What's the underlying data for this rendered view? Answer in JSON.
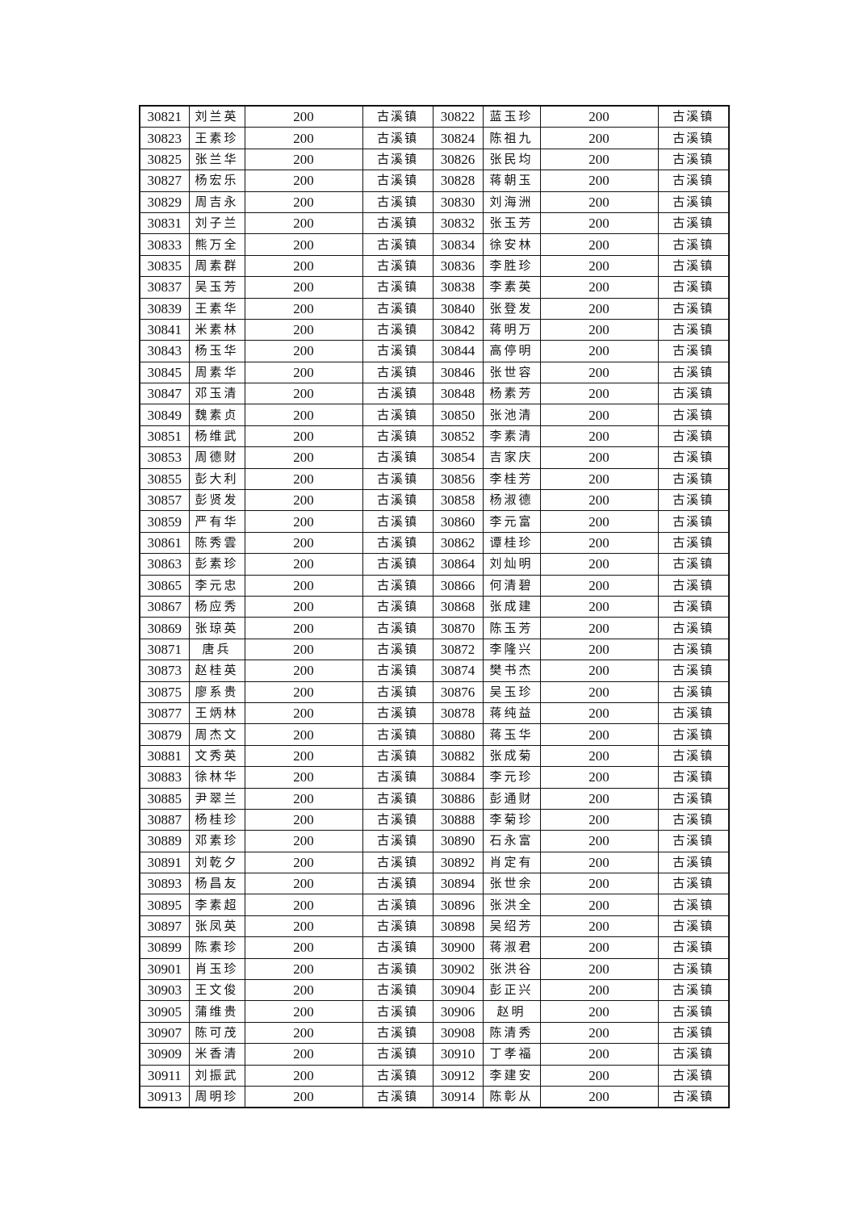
{
  "table": {
    "rows": [
      [
        "30821",
        "刘兰英",
        "200",
        "古溪镇",
        "30822",
        "蓝玉珍",
        "200",
        "古溪镇"
      ],
      [
        "30823",
        "王素珍",
        "200",
        "古溪镇",
        "30824",
        "陈祖九",
        "200",
        "古溪镇"
      ],
      [
        "30825",
        "张兰华",
        "200",
        "古溪镇",
        "30826",
        "张民均",
        "200",
        "古溪镇"
      ],
      [
        "30827",
        "杨宏乐",
        "200",
        "古溪镇",
        "30828",
        "蒋朝玉",
        "200",
        "古溪镇"
      ],
      [
        "30829",
        "周吉永",
        "200",
        "古溪镇",
        "30830",
        "刘海洲",
        "200",
        "古溪镇"
      ],
      [
        "30831",
        "刘子兰",
        "200",
        "古溪镇",
        "30832",
        "张玉芳",
        "200",
        "古溪镇"
      ],
      [
        "30833",
        "熊万全",
        "200",
        "古溪镇",
        "30834",
        "徐安林",
        "200",
        "古溪镇"
      ],
      [
        "30835",
        "周素群",
        "200",
        "古溪镇",
        "30836",
        "李胜珍",
        "200",
        "古溪镇"
      ],
      [
        "30837",
        "吴玉芳",
        "200",
        "古溪镇",
        "30838",
        "李素英",
        "200",
        "古溪镇"
      ],
      [
        "30839",
        "王素华",
        "200",
        "古溪镇",
        "30840",
        "张登发",
        "200",
        "古溪镇"
      ],
      [
        "30841",
        "米素林",
        "200",
        "古溪镇",
        "30842",
        "蒋明万",
        "200",
        "古溪镇"
      ],
      [
        "30843",
        "杨玉华",
        "200",
        "古溪镇",
        "30844",
        "高停明",
        "200",
        "古溪镇"
      ],
      [
        "30845",
        "周素华",
        "200",
        "古溪镇",
        "30846",
        "张世容",
        "200",
        "古溪镇"
      ],
      [
        "30847",
        "邓玉清",
        "200",
        "古溪镇",
        "30848",
        "杨素芳",
        "200",
        "古溪镇"
      ],
      [
        "30849",
        "魏素贞",
        "200",
        "古溪镇",
        "30850",
        "张池清",
        "200",
        "古溪镇"
      ],
      [
        "30851",
        "杨维武",
        "200",
        "古溪镇",
        "30852",
        "李素清",
        "200",
        "古溪镇"
      ],
      [
        "30853",
        "周德财",
        "200",
        "古溪镇",
        "30854",
        "吉家庆",
        "200",
        "古溪镇"
      ],
      [
        "30855",
        "彭大利",
        "200",
        "古溪镇",
        "30856",
        "李桂芳",
        "200",
        "古溪镇"
      ],
      [
        "30857",
        "彭贤发",
        "200",
        "古溪镇",
        "30858",
        "杨淑德",
        "200",
        "古溪镇"
      ],
      [
        "30859",
        "严有华",
        "200",
        "古溪镇",
        "30860",
        "李元富",
        "200",
        "古溪镇"
      ],
      [
        "30861",
        "陈秀雲",
        "200",
        "古溪镇",
        "30862",
        "谭桂珍",
        "200",
        "古溪镇"
      ],
      [
        "30863",
        "彭素珍",
        "200",
        "古溪镇",
        "30864",
        "刘灿明",
        "200",
        "古溪镇"
      ],
      [
        "30865",
        "李元忠",
        "200",
        "古溪镇",
        "30866",
        "何清碧",
        "200",
        "古溪镇"
      ],
      [
        "30867",
        "杨应秀",
        "200",
        "古溪镇",
        "30868",
        "张成建",
        "200",
        "古溪镇"
      ],
      [
        "30869",
        "张琼英",
        "200",
        "古溪镇",
        "30870",
        "陈玉芳",
        "200",
        "古溪镇"
      ],
      [
        "30871",
        "唐兵",
        "200",
        "古溪镇",
        "30872",
        "李隆兴",
        "200",
        "古溪镇"
      ],
      [
        "30873",
        "赵桂英",
        "200",
        "古溪镇",
        "30874",
        "樊书杰",
        "200",
        "古溪镇"
      ],
      [
        "30875",
        "廖系贵",
        "200",
        "古溪镇",
        "30876",
        "吴玉珍",
        "200",
        "古溪镇"
      ],
      [
        "30877",
        "王炳林",
        "200",
        "古溪镇",
        "30878",
        "蒋纯益",
        "200",
        "古溪镇"
      ],
      [
        "30879",
        "周杰文",
        "200",
        "古溪镇",
        "30880",
        "蒋玉华",
        "200",
        "古溪镇"
      ],
      [
        "30881",
        "文秀英",
        "200",
        "古溪镇",
        "30882",
        "张成菊",
        "200",
        "古溪镇"
      ],
      [
        "30883",
        "徐林华",
        "200",
        "古溪镇",
        "30884",
        "李元珍",
        "200",
        "古溪镇"
      ],
      [
        "30885",
        "尹翠兰",
        "200",
        "古溪镇",
        "30886",
        "彭通财",
        "200",
        "古溪镇"
      ],
      [
        "30887",
        "杨桂珍",
        "200",
        "古溪镇",
        "30888",
        "李菊珍",
        "200",
        "古溪镇"
      ],
      [
        "30889",
        "邓素珍",
        "200",
        "古溪镇",
        "30890",
        "石永富",
        "200",
        "古溪镇"
      ],
      [
        "30891",
        "刘乾夕",
        "200",
        "古溪镇",
        "30892",
        "肖定有",
        "200",
        "古溪镇"
      ],
      [
        "30893",
        "杨昌友",
        "200",
        "古溪镇",
        "30894",
        "张世余",
        "200",
        "古溪镇"
      ],
      [
        "30895",
        "李素超",
        "200",
        "古溪镇",
        "30896",
        "张洪全",
        "200",
        "古溪镇"
      ],
      [
        "30897",
        "张凤英",
        "200",
        "古溪镇",
        "30898",
        "吴绍芳",
        "200",
        "古溪镇"
      ],
      [
        "30899",
        "陈素珍",
        "200",
        "古溪镇",
        "30900",
        "蒋淑君",
        "200",
        "古溪镇"
      ],
      [
        "30901",
        "肖玉珍",
        "200",
        "古溪镇",
        "30902",
        "张洪谷",
        "200",
        "古溪镇"
      ],
      [
        "30903",
        "王文俊",
        "200",
        "古溪镇",
        "30904",
        "彭正兴",
        "200",
        "古溪镇"
      ],
      [
        "30905",
        "蒲维贵",
        "200",
        "古溪镇",
        "30906",
        "赵明",
        "200",
        "古溪镇"
      ],
      [
        "30907",
        "陈可茂",
        "200",
        "古溪镇",
        "30908",
        "陈清秀",
        "200",
        "古溪镇"
      ],
      [
        "30909",
        "米香清",
        "200",
        "古溪镇",
        "30910",
        "丁孝福",
        "200",
        "古溪镇"
      ],
      [
        "30911",
        "刘振武",
        "200",
        "古溪镇",
        "30912",
        "李建安",
        "200",
        "古溪镇"
      ],
      [
        "30913",
        "周明珍",
        "200",
        "古溪镇",
        "30914",
        "陈彰从",
        "200",
        "古溪镇"
      ]
    ]
  }
}
